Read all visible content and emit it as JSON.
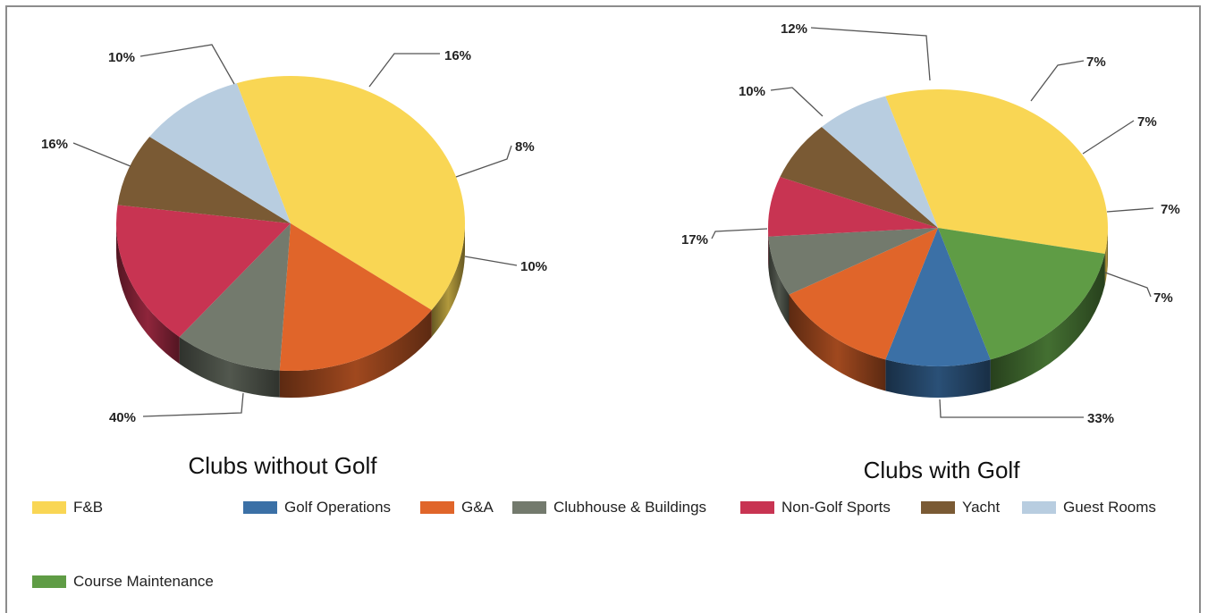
{
  "colors": {
    "F&B": "#f9d654",
    "Golf Operations": "#3b70a6",
    "G&A": "#e0652a",
    "Clubhouse & Buildings": "#737a6d",
    "Non-Golf Sports": "#c83452",
    "Yacht": "#7a5a34",
    "Guest Rooms": "#b8cde0",
    "Course Maintenance": "#5f9c45"
  },
  "legend": [
    "F&B",
    "Golf Operations",
    "G&A",
    "Clubhouse & Buildings",
    "Non-Golf Sports",
    "Yacht",
    "Guest Rooms",
    "Course Maintenance"
  ],
  "chart_data": [
    {
      "type": "pie",
      "title": "Clubs without Golf",
      "slices": [
        {
          "category": "F&B",
          "value": 40,
          "label": "40%"
        },
        {
          "category": "G&A",
          "value": 16,
          "label": "16%"
        },
        {
          "category": "Clubhouse & Buildings",
          "value": 10,
          "label": "10%"
        },
        {
          "category": "Non-Golf Sports",
          "value": 16,
          "label": "16%"
        },
        {
          "category": "Yacht",
          "value": 8,
          "label": "8%"
        },
        {
          "category": "Guest Rooms",
          "value": 10,
          "label": "10%"
        }
      ]
    },
    {
      "type": "pie",
      "title": "Clubs with Golf",
      "slices": [
        {
          "category": "F&B",
          "value": 33,
          "label": "33%"
        },
        {
          "category": "Course Maintenance",
          "value": 17,
          "label": "17%"
        },
        {
          "category": "Golf Operations",
          "value": 10,
          "label": "10%"
        },
        {
          "category": "G&A",
          "value": 12,
          "label": "12%"
        },
        {
          "category": "Clubhouse & Buildings",
          "value": 7,
          "label": "7%"
        },
        {
          "category": "Non-Golf Sports",
          "value": 7,
          "label": "7%"
        },
        {
          "category": "Yacht",
          "value": 7,
          "label": "7%"
        },
        {
          "category": "Guest Rooms",
          "value": 7,
          "label": "7%"
        }
      ]
    }
  ]
}
